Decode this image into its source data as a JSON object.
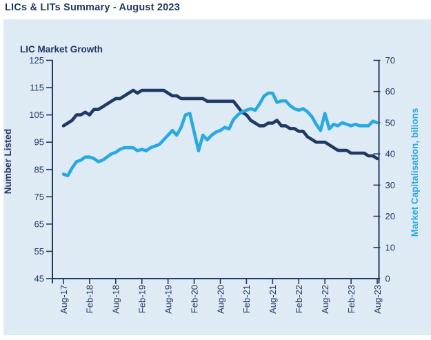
{
  "page": {
    "title": "LICs & LITs Summary - August 2023"
  },
  "colors": {
    "navy": "#1F3864",
    "accent_blue": "#29A9E1",
    "panel_background": "#DEEBF4",
    "page_background": "#FFFFFF"
  },
  "chart_data": {
    "type": "line",
    "title": "LIC Market Growth",
    "grid": false,
    "legend": "none",
    "x_tick_labels": [
      "Aug-17",
      "Feb-18",
      "Aug-18",
      "Feb-19",
      "Aug-19",
      "Feb-20",
      "Aug-20",
      "Feb-21",
      "Aug-21",
      "Feb-22",
      "Aug-22",
      "Feb-23",
      "Aug-23"
    ],
    "x_points_per_tick": 6,
    "left_axis": {
      "title": "Number Listed",
      "min": 45,
      "max": 125,
      "step": 10,
      "ticks": [
        45,
        55,
        65,
        75,
        85,
        95,
        105,
        115,
        125
      ]
    },
    "right_axis": {
      "title": "Market Capitalisation, bilions",
      "min": 0,
      "max": 70,
      "step": 10,
      "ticks": [
        0,
        10,
        20,
        30,
        40,
        50,
        60,
        70
      ]
    },
    "series": [
      {
        "name": "Number Listed",
        "key": "number-listed",
        "yaxis": "left",
        "color": "#1F3864",
        "values": [
          101,
          102,
          103,
          105,
          105,
          106,
          105,
          107,
          107,
          108,
          109,
          110,
          111,
          111,
          112,
          113,
          114,
          113,
          114,
          114,
          114,
          114,
          114,
          114,
          113,
          112,
          112,
          111,
          111,
          111,
          111,
          111,
          111,
          110,
          110,
          110,
          110,
          110,
          110,
          110,
          108,
          106,
          105,
          103,
          102,
          101,
          101,
          102,
          102,
          103,
          101,
          101,
          100,
          100,
          99,
          99,
          97,
          96,
          95,
          95,
          95,
          94,
          93,
          92,
          92,
          92,
          91,
          91,
          91,
          91,
          90,
          90,
          89
        ]
      },
      {
        "name": "Market Capitalisation, bilions",
        "key": "market-capitalisation",
        "yaxis": "right",
        "color": "#29A9E1",
        "values": [
          33.5,
          33,
          35.5,
          37.5,
          38,
          39,
          39,
          38.5,
          37.5,
          38,
          39,
          40,
          40.5,
          41.5,
          42,
          42,
          42,
          41,
          41.5,
          41,
          42,
          42.5,
          43,
          44.5,
          46,
          47.5,
          46,
          48.5,
          52.5,
          53,
          47,
          41,
          46,
          44.5,
          46,
          47,
          47.5,
          48.5,
          48,
          51,
          52.5,
          53.5,
          54,
          54.5,
          54,
          56,
          58.5,
          59.5,
          59.5,
          56.5,
          57,
          57,
          55.5,
          54.5,
          54,
          54.5,
          53.5,
          52,
          49.5,
          47.5,
          53,
          48,
          49.5,
          49,
          50,
          49.5,
          49,
          49.5,
          49,
          49,
          49,
          50.5,
          50
        ]
      }
    ]
  }
}
